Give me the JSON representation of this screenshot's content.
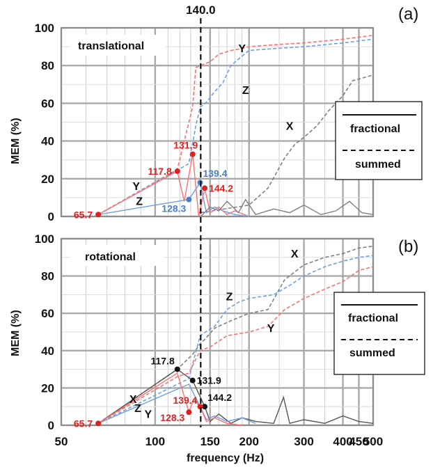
{
  "chart_data": [
    {
      "panel_label": "(a)",
      "type": "line",
      "inner_label": "translational",
      "ylabel": "MEM (%)",
      "xlabel": "frequency (Hz)",
      "xscale": "log",
      "xlim": [
        50,
        500
      ],
      "ylim": [
        0,
        100
      ],
      "x_ticks": [
        "50",
        "100",
        "150",
        "200",
        "300",
        "400",
        "450",
        "500"
      ],
      "y_ticks": [
        "0",
        "20",
        "40",
        "60",
        "80",
        "100"
      ],
      "grid": true,
      "vline": {
        "x": 140.0,
        "label": "140.0"
      },
      "legend": {
        "solid": "fractional",
        "dashed": "summed",
        "placement": "right"
      },
      "colors": {
        "X": "#7f7f7f",
        "Y": "#ff6f6f",
        "Z": "#6f9fdf",
        "highlight_Y": "#e02020",
        "highlight_Z": "#4a7fc8",
        "highlight_X": "#111111"
      },
      "series": [
        {
          "name": "Y",
          "style": "summed",
          "color": "#ff6f6f",
          "x": [
            65.7,
            117.8,
            131.9,
            135,
            140,
            144.2,
            150,
            160,
            175,
            190,
            200,
            240,
            300,
            400,
            500
          ],
          "y": [
            1,
            25,
            58,
            79,
            80,
            81,
            82,
            86,
            88,
            89,
            90,
            91,
            92,
            94,
            96
          ]
        },
        {
          "name": "Z",
          "style": "summed",
          "color": "#6f9fdf",
          "x": [
            65.7,
            128.3,
            135,
            139.4,
            145,
            155,
            165,
            175,
            190,
            200,
            240,
            300,
            400,
            500
          ],
          "y": [
            1,
            28,
            48,
            58,
            60,
            66,
            71,
            80,
            85,
            88,
            89,
            90,
            92,
            94
          ]
        },
        {
          "name": "X",
          "style": "summed",
          "color": "#7f7f7f",
          "x": [
            140,
            200,
            230,
            260,
            280,
            300,
            330,
            360,
            400,
            430,
            500
          ],
          "y": [
            2,
            6,
            15,
            31,
            38,
            42,
            48,
            56,
            64,
            72,
            75
          ]
        },
        {
          "name": "Y",
          "style": "fractional",
          "color": "#ff6f6f",
          "x": [
            65.7,
            117.8,
            124,
            131.9,
            138,
            144.2,
            150,
            160,
            170,
            180,
            200
          ],
          "y": [
            1,
            24,
            8,
            33,
            0,
            15,
            2,
            5,
            1,
            3,
            0
          ]
        },
        {
          "name": "Z",
          "style": "fractional",
          "color": "#6f9fdf",
          "x": [
            65.7,
            128.3,
            139.4,
            146,
            155,
            165,
            180,
            200
          ],
          "y": [
            1,
            9,
            18,
            2,
            5,
            3,
            1,
            0
          ]
        },
        {
          "name": "X",
          "style": "fractional",
          "color": "#7f7f7f",
          "x": [
            140,
            150,
            160,
            170,
            185,
            195,
            210,
            240,
            270,
            300,
            340,
            380,
            420,
            460,
            500
          ],
          "y": [
            0,
            5,
            3,
            8,
            2,
            9,
            1,
            4,
            2,
            6,
            1,
            3,
            8,
            2,
            1
          ]
        }
      ],
      "points": [
        {
          "series": "Y",
          "x": 65.7,
          "y": 1,
          "label": "65.7",
          "color": "#e02020",
          "label_pos": "left"
        },
        {
          "series": "Y",
          "x": 117.8,
          "y": 24,
          "label": "117.8",
          "color": "#e02020",
          "label_pos": "left"
        },
        {
          "series": "Y",
          "x": 131.9,
          "y": 33,
          "label": "131.9",
          "color": "#e02020",
          "label_pos": "top"
        },
        {
          "series": "Y",
          "x": 144.2,
          "y": 15,
          "label": "144.2",
          "color": "#e02020",
          "label_pos": "right"
        },
        {
          "series": "Z",
          "x": 128.3,
          "y": 9,
          "label": "128.3",
          "color": "#4a7fc8",
          "label_pos": "below-left"
        },
        {
          "series": "Z",
          "x": 139.4,
          "y": 18,
          "label": "139.4",
          "color": "#4a7fc8",
          "label_pos": "right-up"
        }
      ],
      "series_labels": [
        {
          "text": "Y",
          "x": 190,
          "y": 87
        },
        {
          "text": "Z",
          "x": 195,
          "y": 65
        },
        {
          "text": "X",
          "x": 270,
          "y": 46
        },
        {
          "text": "Y",
          "x": 87,
          "y": 14
        },
        {
          "text": "Z",
          "x": 89,
          "y": 6
        }
      ]
    },
    {
      "panel_label": "(b)",
      "type": "line",
      "inner_label": "rotational",
      "ylabel": "MEM (%)",
      "xlabel": "frequency (Hz)",
      "xscale": "log",
      "xlim": [
        50,
        500
      ],
      "ylim": [
        0,
        100
      ],
      "x_ticks": [
        "50",
        "100",
        "150",
        "200",
        "300",
        "400",
        "450",
        "500"
      ],
      "y_ticks": [
        "0",
        "20",
        "40",
        "60",
        "80",
        "100"
      ],
      "grid": true,
      "vline": {
        "x": 140.0
      },
      "legend": {
        "solid": "fractional",
        "dashed": "summed",
        "placement": "right"
      },
      "colors": {
        "X": "#7f7f7f",
        "Y": "#ff6f6f",
        "Z": "#6f9fdf",
        "highlight_Y": "#e02020",
        "highlight_Z": "#4a7fc8",
        "highlight_X": "#111111"
      },
      "series": [
        {
          "name": "X",
          "style": "summed",
          "color": "#7f7f7f",
          "x": [
            65.7,
            117.8,
            131.9,
            140,
            144.2,
            155,
            175,
            200,
            230,
            260,
            300,
            350,
            400,
            450,
            500
          ],
          "y": [
            1,
            30,
            38,
            44,
            46,
            52,
            56,
            60,
            62,
            78,
            86,
            90,
            92,
            95,
            96
          ]
        },
        {
          "name": "Z",
          "style": "summed",
          "color": "#6f9fdf",
          "x": [
            65.7,
            128.3,
            139.4,
            145,
            155,
            170,
            185,
            200,
            240,
            270,
            300,
            350,
            400,
            450,
            500
          ],
          "y": [
            1,
            25,
            48,
            50,
            53,
            62,
            66,
            68,
            70,
            75,
            80,
            85,
            88,
            90,
            91
          ]
        },
        {
          "name": "Y",
          "style": "summed",
          "color": "#ff6f6f",
          "x": [
            65.7,
            117.8,
            128.3,
            139.4,
            150,
            170,
            200,
            230,
            260,
            300,
            350,
            400,
            450,
            500
          ],
          "y": [
            1,
            26,
            28,
            40,
            42,
            48,
            50,
            53,
            62,
            68,
            73,
            77,
            83,
            85
          ]
        },
        {
          "name": "X",
          "style": "fractional",
          "color": "#555555",
          "x": [
            65.7,
            117.8,
            131.9,
            144.2,
            150,
            160,
            175,
            190,
            210,
            240,
            258,
            270,
            300,
            350,
            400,
            450,
            500
          ],
          "y": [
            1,
            30,
            24,
            10,
            2,
            6,
            1,
            4,
            2,
            1,
            15,
            1,
            3,
            1,
            5,
            2,
            1
          ]
        },
        {
          "name": "Z",
          "style": "fractional",
          "color": "#6f9fdf",
          "x": [
            65.7,
            128.3,
            139.4,
            146,
            155,
            170,
            190,
            210
          ],
          "y": [
            1,
            22,
            10,
            3,
            5,
            2,
            4,
            1
          ]
        },
        {
          "name": "Y",
          "style": "fractional",
          "color": "#ff6f6f",
          "x": [
            65.7,
            117.8,
            128.3,
            133,
            139.4,
            146,
            155,
            170,
            190
          ],
          "y": [
            1,
            28,
            7,
            14,
            10,
            2,
            4,
            1,
            0
          ]
        }
      ],
      "points": [
        {
          "series": "Y",
          "x": 65.7,
          "y": 1,
          "label": "65.7",
          "color": "#e02020",
          "label_pos": "left"
        },
        {
          "series": "X",
          "x": 117.8,
          "y": 30,
          "label": "117.8",
          "color": "#111111",
          "label_pos": "top-left"
        },
        {
          "series": "X",
          "x": 131.9,
          "y": 24,
          "label": "131.9",
          "color": "#111111",
          "label_pos": "right"
        },
        {
          "series": "X",
          "x": 144.2,
          "y": 10,
          "label": "144.2",
          "color": "#111111",
          "label_pos": "right-up"
        },
        {
          "series": "Y",
          "x": 139.4,
          "y": 10,
          "label": "139.4",
          "color": "#e02020",
          "label_pos": "left-up"
        },
        {
          "series": "Y",
          "x": 128.3,
          "y": 7,
          "label": "128.3",
          "color": "#e02020",
          "label_pos": "left-down"
        }
      ],
      "series_labels": [
        {
          "text": "X",
          "x": 280,
          "y": 90
        },
        {
          "text": "Z",
          "x": 173,
          "y": 67
        },
        {
          "text": "Y",
          "x": 235,
          "y": 50
        },
        {
          "text": "X",
          "x": 85,
          "y": 12
        },
        {
          "text": "Z",
          "x": 88,
          "y": 7
        },
        {
          "text": "Y",
          "x": 95,
          "y": 4
        }
      ]
    }
  ]
}
